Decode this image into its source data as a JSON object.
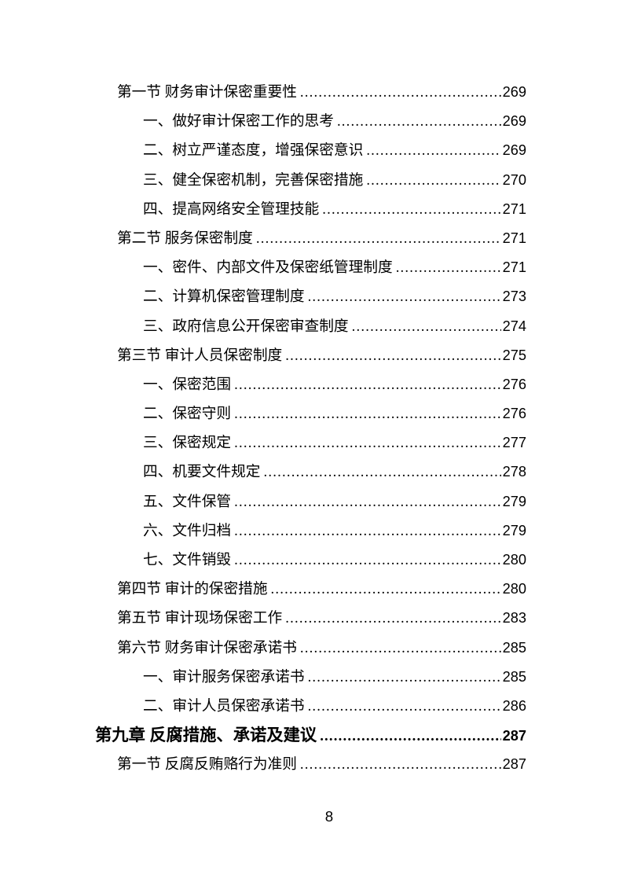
{
  "document": {
    "type": "table-of-contents-page",
    "footer": {
      "page_number": "8"
    },
    "colors": {
      "text": "#000000",
      "background": "#ffffff"
    }
  },
  "toc_entries": [
    {
      "level": "section",
      "text": "第一节 财务审计保密重要性",
      "page": "269"
    },
    {
      "level": "item",
      "text": "一、做好审计保密工作的思考",
      "page": "269"
    },
    {
      "level": "item",
      "text": "二、树立严谨态度，增强保密意识",
      "page": "269"
    },
    {
      "level": "item",
      "text": "三、健全保密机制，完善保密措施",
      "page": "270"
    },
    {
      "level": "item",
      "text": "四、提高网络安全管理技能",
      "page": "271"
    },
    {
      "level": "section",
      "text": "第二节 服务保密制度",
      "page": "271"
    },
    {
      "level": "item",
      "text": "一、密件、内部文件及保密纸管理制度",
      "page": "271"
    },
    {
      "level": "item",
      "text": "二、计算机保密管理制度",
      "page": "273"
    },
    {
      "level": "item",
      "text": "三、政府信息公开保密审查制度",
      "page": "274"
    },
    {
      "level": "section",
      "text": "第三节 审计人员保密制度",
      "page": "275"
    },
    {
      "level": "item",
      "text": "一、保密范围",
      "page": "276"
    },
    {
      "level": "item",
      "text": "二、保密守则",
      "page": "276"
    },
    {
      "level": "item",
      "text": "三、保密规定",
      "page": "277"
    },
    {
      "level": "item",
      "text": "四、机要文件规定",
      "page": "278"
    },
    {
      "level": "item",
      "text": "五、文件保管",
      "page": "279"
    },
    {
      "level": "item",
      "text": "六、文件归档",
      "page": "279"
    },
    {
      "level": "item",
      "text": "七、文件销毁",
      "page": "280"
    },
    {
      "level": "section",
      "text": "第四节 审计的保密措施",
      "page": "280"
    },
    {
      "level": "section",
      "text": "第五节 审计现场保密工作",
      "page": "283"
    },
    {
      "level": "section",
      "text": "第六节 财务审计保密承诺书",
      "page": "285"
    },
    {
      "level": "item",
      "text": "一、审计服务保密承诺书",
      "page": "285"
    },
    {
      "level": "item",
      "text": "二、审计人员保密承诺书",
      "page": "286"
    },
    {
      "level": "chapter",
      "text": "第九章 反腐措施、承诺及建议",
      "page": "287"
    },
    {
      "level": "section",
      "text": "第一节 反腐反贿赂行为准则",
      "page": "287"
    }
  ]
}
